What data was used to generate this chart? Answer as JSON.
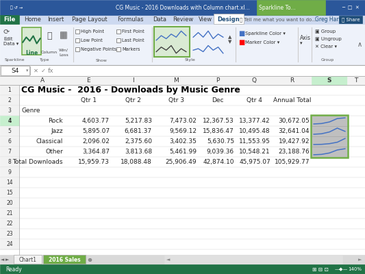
{
  "title": "CG Music -  2016 - Downloads by Music Genre",
  "value_formats": [
    [
      "4,603.77",
      "5,217.83",
      "7,473.02",
      "12,367.53",
      "13,377.42"
    ],
    [
      "5,895.07",
      "6,681.37",
      "9,569.12",
      "15,836.47",
      "10,495.48"
    ],
    [
      "2,096.02",
      "2,375.60",
      "3,402.35",
      "5,630.75",
      "11,553.95"
    ],
    [
      "3,364.87",
      "3,813.68",
      "5,461.99",
      "9,039.36",
      "10,548.21"
    ]
  ],
  "row_labels": [
    "Rock",
    "Jazz",
    "Classical",
    "Other"
  ],
  "row_totals": [
    "30,672.05",
    "32,641.04",
    "19,427.92",
    "23,188.76"
  ],
  "sparkline_values": [
    [
      4603.77,
      5217.83,
      7473.02,
      12367.53,
      13377.42
    ],
    [
      5895.07,
      6681.37,
      9569.12,
      15836.47,
      10495.48
    ],
    [
      2096.02,
      2375.6,
      3402.35,
      5630.75,
      11553.95
    ],
    [
      3364.87,
      3813.68,
      5461.99,
      9039.36,
      10548.21
    ]
  ],
  "total_values_fmt": [
    "15,959.73",
    "18,088.48",
    "25,906.49",
    "42,874.10",
    "45,975.07"
  ],
  "total_label": "Total Downloads",
  "total_grand": "105,929.77",
  "col_headers": [
    "Qtr 1",
    "Qtr 2",
    "Qtr 3",
    "Dec",
    "Qtr 4",
    "Annual Total"
  ],
  "sheet_tabs": [
    "Chart1",
    "2016 Sales"
  ],
  "titlebar_bg": "#2B579A",
  "sparkline_tab_bg": "#70AD47",
  "ribbon_bg": "#EEF2FA",
  "ribbon_tab_bar_bg": "#CDD9F0",
  "design_tab_bg": "#FFFFFF",
  "file_tab_bg": "#217346",
  "line_btn_bg": "#D9EAD3",
  "line_btn_border": "#70AD47",
  "style_sel_bg": "#D9EAD3",
  "style_sel_border": "#70AD47",
  "formula_bar_bg": "#FFFFFF",
  "sheet_bg": "#FFFFFF",
  "col_hdr_bg": "#F2F2F2",
  "col_hdr_sel_bg": "#C6EFCE",
  "row_num_bg": "#F2F2F2",
  "row_num_sel_bg": "#C6EFCE",
  "grid_color": "#D0D0D0",
  "sparkline_area_bg": "#BFBFBF",
  "sparkline_border": "#70AD47",
  "sparkline_line": "#4472C4",
  "tab_active_bg": "#70AD47",
  "tab_active_fg": "#FFFFFF",
  "tab_inactive_bg": "#F2F2F2",
  "status_bar_bg": "#217346",
  "status_bar_fg": "#FFFFFF"
}
